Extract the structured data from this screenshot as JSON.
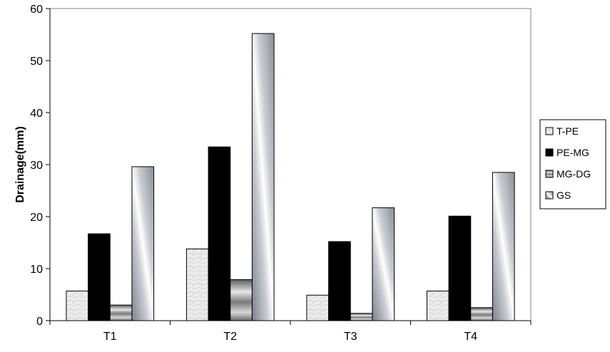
{
  "chart_data": {
    "type": "bar",
    "title": "",
    "xlabel": "",
    "ylabel": "Drainage(mm)",
    "ylim": [
      0,
      60
    ],
    "yticks": [
      0,
      10,
      20,
      30,
      40,
      50,
      60
    ],
    "grid": false,
    "legend_position": "right",
    "categories": [
      "T1",
      "T2",
      "T3",
      "T4"
    ],
    "series": [
      {
        "name": "T-PE",
        "values": [
          5.7,
          13.8,
          4.9,
          5.7
        ],
        "pattern": "texture-light",
        "color": "#e8e8e8"
      },
      {
        "name": "PE-MG",
        "values": [
          16.7,
          33.4,
          15.2,
          20.1
        ],
        "pattern": "solid",
        "color": "#000000"
      },
      {
        "name": "MG-DG",
        "values": [
          3.0,
          7.9,
          1.4,
          2.5
        ],
        "pattern": "horizontal-gradient",
        "color": "#9a9a9a"
      },
      {
        "name": "GS",
        "values": [
          29.6,
          55.2,
          21.7,
          28.5
        ],
        "pattern": "diagonal-gradient",
        "color": "#b8bcc4"
      }
    ]
  }
}
